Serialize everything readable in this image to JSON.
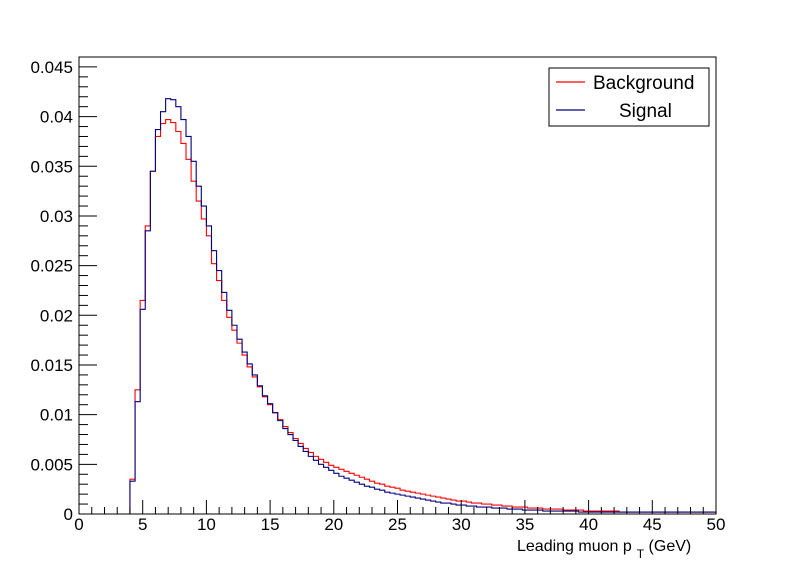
{
  "chart_data": {
    "type": "line",
    "style": "step-histogram",
    "xlabel": {
      "prefix": "Leading muon p",
      "subscript": "T",
      "suffix": " (GeV)"
    },
    "ylabel": "",
    "xlim": [
      0,
      50
    ],
    "ylim": [
      0,
      0.046
    ],
    "x_ticks": [
      0,
      5,
      10,
      15,
      20,
      25,
      30,
      35,
      40,
      45,
      50
    ],
    "x_tick_labels": [
      "0",
      "5",
      "10",
      "15",
      "20",
      "25",
      "30",
      "35",
      "40",
      "45",
      "50"
    ],
    "y_ticks": [
      0,
      0.005,
      0.01,
      0.015,
      0.02,
      0.025,
      0.03,
      0.035,
      0.04,
      0.045
    ],
    "y_tick_labels": [
      "0",
      "0.005",
      "0.01",
      "0.015",
      "0.02",
      "0.025",
      "0.03",
      "0.035",
      "0.04",
      "0.045"
    ],
    "grid": false,
    "legend_position": "top-right",
    "x_bin_edges": [
      0.0,
      0.4,
      0.8,
      1.2,
      1.6,
      2.0,
      2.4,
      2.8,
      3.2,
      3.6,
      4.0,
      4.4,
      4.8,
      5.2,
      5.6,
      6.0,
      6.4,
      6.8,
      7.2,
      7.6,
      8.0,
      8.4,
      8.8,
      9.2,
      9.6,
      10.0,
      10.4,
      10.8,
      11.2,
      11.6,
      12.0,
      12.4,
      12.8,
      13.2,
      13.6,
      14.0,
      14.4,
      14.8,
      15.2,
      15.6,
      16.0,
      16.4,
      16.8,
      17.2,
      17.6,
      18.0,
      18.4,
      18.8,
      19.2,
      19.6,
      20.0,
      20.4,
      20.8,
      21.2,
      21.6,
      22.0,
      22.4,
      22.8,
      23.2,
      23.6,
      24.0,
      24.4,
      24.8,
      25.2,
      25.6,
      26.0,
      26.4,
      26.8,
      27.2,
      27.6,
      28.0,
      28.4,
      28.8,
      29.2,
      29.6,
      30.0,
      30.4,
      30.8,
      31.2,
      31.6,
      32.0,
      32.4,
      32.8,
      33.2,
      33.6,
      34.0,
      34.4,
      34.8,
      35.2,
      35.6,
      36.0,
      36.4,
      36.8,
      37.2,
      37.6,
      38.0,
      38.4,
      38.8,
      39.2,
      39.6,
      40.0,
      40.4,
      40.8,
      41.2,
      41.6,
      42.0,
      42.4,
      42.8,
      43.2,
      43.6,
      44.0,
      44.4,
      44.8,
      45.2,
      45.6,
      46.0,
      46.4,
      46.8,
      47.2,
      47.6,
      48.0,
      48.4,
      48.8,
      49.2,
      49.6,
      50.0
    ],
    "series": [
      {
        "name": "Background",
        "color": "#ff0000",
        "values": [
          0,
          0,
          0,
          0,
          0,
          0,
          0,
          0,
          0,
          0,
          0.0035,
          0.0125,
          0.0215,
          0.029,
          0.0345,
          0.038,
          0.0393,
          0.0397,
          0.0394,
          0.0385,
          0.0373,
          0.0357,
          0.0335,
          0.0315,
          0.0297,
          0.028,
          0.0252,
          0.0235,
          0.0215,
          0.0198,
          0.0185,
          0.0172,
          0.016,
          0.0148,
          0.0138,
          0.0128,
          0.0118,
          0.011,
          0.0102,
          0.0095,
          0.0088,
          0.0082,
          0.0076,
          0.0071,
          0.0066,
          0.0062,
          0.0058,
          0.0055,
          0.0052,
          0.0049,
          0.0047,
          0.0045,
          0.0043,
          0.0041,
          0.0039,
          0.0037,
          0.0035,
          0.0033,
          0.0031,
          0.003,
          0.0028,
          0.0027,
          0.0026,
          0.0024,
          0.0023,
          0.0022,
          0.0021,
          0.002,
          0.0019,
          0.0018,
          0.0017,
          0.0016,
          0.0015,
          0.0014,
          0.0013,
          0.0013,
          0.0012,
          0.0011,
          0.0011,
          0.001,
          0.001,
          0.0009,
          0.0009,
          0.0008,
          0.0008,
          0.0007,
          0.0007,
          0.0007,
          0.0006,
          0.0006,
          0.0006,
          0.0005,
          0.0005,
          0.0005,
          0.0005,
          0.0004,
          0.0004,
          0.0004,
          0.0004,
          0.0003,
          0.0003,
          0.0003,
          0.0003,
          0.0003,
          0.0003,
          0.0003,
          0.0002,
          0.0002,
          0.0002,
          0.0002,
          0.0002,
          0.0002,
          0.0002,
          0.0002,
          0.0002,
          0.0002,
          0.0002,
          0.0002,
          0.0002,
          0.0002,
          0.0002,
          0.0002,
          0.0002,
          0.0002,
          0.0002
        ]
      },
      {
        "name": "Signal",
        "color": "#000080",
        "values": [
          0,
          0,
          0,
          0,
          0,
          0,
          0,
          0,
          0,
          0,
          0.0033,
          0.0113,
          0.0206,
          0.0285,
          0.0345,
          0.0387,
          0.0405,
          0.0418,
          0.0417,
          0.041,
          0.0397,
          0.038,
          0.0355,
          0.033,
          0.031,
          0.029,
          0.0265,
          0.0245,
          0.0223,
          0.0205,
          0.019,
          0.0176,
          0.0163,
          0.0151,
          0.014,
          0.0129,
          0.0119,
          0.0111,
          0.0102,
          0.0094,
          0.0086,
          0.008,
          0.0074,
          0.0068,
          0.0063,
          0.0058,
          0.0054,
          0.005,
          0.0047,
          0.0044,
          0.0041,
          0.0038,
          0.0036,
          0.0034,
          0.0032,
          0.003,
          0.0028,
          0.0027,
          0.0025,
          0.0024,
          0.0022,
          0.0021,
          0.002,
          0.0019,
          0.0018,
          0.0017,
          0.0016,
          0.0015,
          0.0014,
          0.0013,
          0.0012,
          0.0011,
          0.0011,
          0.001,
          0.0009,
          0.0009,
          0.0008,
          0.0008,
          0.0007,
          0.0007,
          0.0007,
          0.0006,
          0.0006,
          0.0006,
          0.0005,
          0.0005,
          0.0005,
          0.0004,
          0.0004,
          0.0004,
          0.0004,
          0.0003,
          0.0003,
          0.0003,
          0.0003,
          0.0003,
          0.0003,
          0.0003,
          0.0002,
          0.0002,
          0.0002,
          0.0002,
          0.0002,
          0.0002,
          0.0002,
          0.0002,
          0.0002,
          0.0002,
          0.0002,
          0.0002,
          0.0002,
          0.0002,
          0.0002,
          0.0002,
          0.0002,
          0.0002,
          0.0002,
          0.0002,
          0.0002,
          0.0002,
          0.0002,
          0.0002,
          0.0002,
          0.0002,
          0.0002
        ]
      }
    ]
  }
}
